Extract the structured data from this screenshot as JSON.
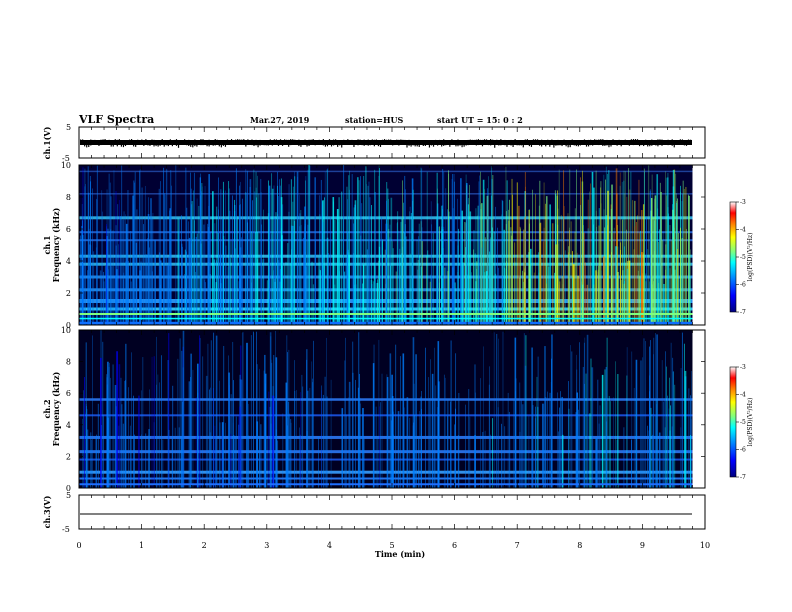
{
  "header": {
    "title": "VLF Spectra",
    "date": "Mar.27, 2019",
    "station": "station=HUS",
    "start": "start  UT  =   15: 0  : 2"
  },
  "chart_data": [
    {
      "type": "line",
      "panel": "ch1-waveform",
      "ylabel": "ch.1(V)",
      "yticks": [
        "5",
        "-5"
      ],
      "ylim": [
        -5,
        5
      ],
      "trace_level": 0.05
    },
    {
      "type": "heatmap",
      "panel": "ch1-spectrogram",
      "ylabel_line1": "ch.1",
      "ylabel_line2": "Frequency  (kHz)",
      "yticks": [
        "0",
        "2",
        "4",
        "6",
        "8",
        "10"
      ],
      "ylim": [
        0,
        10
      ],
      "xlim": [
        0,
        9.8
      ],
      "colorbar": {
        "label": "log(PSD)(V²/Hz)",
        "ticks": [
          "-3",
          "-4",
          "-5",
          "-6",
          "-7"
        ],
        "range": [
          -7,
          -3
        ]
      }
    },
    {
      "type": "heatmap",
      "panel": "ch2-spectrogram",
      "ylabel_line1": "ch.2",
      "ylabel_line2": "Frequency  (kHz)",
      "yticks": [
        "0",
        "2",
        "4",
        "6",
        "8",
        "10"
      ],
      "ylim": [
        0,
        10
      ],
      "xlim": [
        0,
        9.8
      ],
      "colorbar": {
        "label": "log(PSD)(V²/Hz)",
        "ticks": [
          "-3",
          "-4",
          "-5",
          "-6",
          "-7"
        ],
        "range": [
          -7,
          -3
        ]
      }
    },
    {
      "type": "line",
      "panel": "ch3-waveform",
      "ylabel": "ch.3(V)",
      "yticks": [
        "5",
        "-5"
      ],
      "ylim": [
        -5,
        5
      ],
      "trace_level": -1.2
    }
  ],
  "xaxis": {
    "label": "Time  (min)",
    "ticks": [
      "0",
      "1",
      "2",
      "3",
      "4",
      "5",
      "6",
      "7",
      "8",
      "9",
      "10"
    ],
    "xlim": [
      0,
      10
    ]
  },
  "colors": {
    "colormap": [
      "#00007f",
      "#0000ff",
      "#007fff",
      "#00ffff",
      "#7fff7f",
      "#ffff00",
      "#ff7f00",
      "#ff0000",
      "#ffffff"
    ]
  }
}
